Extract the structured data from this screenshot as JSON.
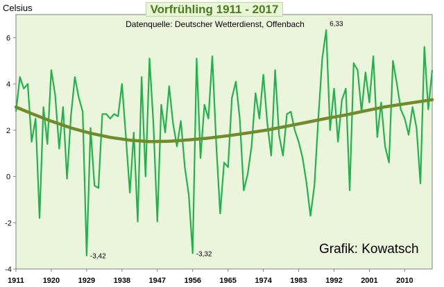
{
  "chart_data": {
    "type": "line",
    "title": "Vorfrühling 1911 - 2017",
    "subtitle": "Datenquelle: Deutscher Wetterdienst, Offenbach",
    "ylabel": "Celsius",
    "xlabel": "",
    "credit": "Grafik: Kowatsch",
    "xlim": [
      1911,
      2017
    ],
    "ylim": [
      -4,
      7
    ],
    "x_ticks": [
      "1911",
      "1920",
      "1929",
      "1938",
      "1947",
      "1956",
      "1965",
      "1974",
      "1983",
      "1992",
      "2001",
      "2010"
    ],
    "y_ticks": [
      "-4",
      "-2",
      "0",
      "2",
      "4",
      "6"
    ],
    "grid": false,
    "background_color": "#ebf5dc",
    "series": [
      {
        "name": "",
        "color": "#22b14c",
        "x": [
          1911,
          1912,
          1913,
          1914,
          1915,
          1916,
          1917,
          1918,
          1919,
          1920,
          1921,
          1922,
          1923,
          1924,
          1925,
          1926,
          1927,
          1928,
          1929,
          1930,
          1931,
          1932,
          1933,
          1934,
          1935,
          1936,
          1937,
          1938,
          1939,
          1940,
          1941,
          1942,
          1943,
          1944,
          1945,
          1946,
          1947,
          1948,
          1949,
          1950,
          1951,
          1952,
          1953,
          1954,
          1955,
          1956,
          1957,
          1958,
          1959,
          1960,
          1961,
          1962,
          1963,
          1964,
          1965,
          1966,
          1967,
          1968,
          1969,
          1970,
          1971,
          1972,
          1973,
          1974,
          1975,
          1976,
          1977,
          1978,
          1979,
          1980,
          1981,
          1982,
          1983,
          1984,
          1985,
          1986,
          1987,
          1988,
          1989,
          1990,
          1991,
          1992,
          1993,
          1994,
          1995,
          1996,
          1997,
          1998,
          1999,
          2000,
          2001,
          2002,
          2003,
          2004,
          2005,
          2006,
          2007,
          2008,
          2009,
          2010,
          2011,
          2012,
          2013,
          2014,
          2015,
          2016,
          2017
        ],
        "values": [
          2.8,
          4.3,
          3.8,
          4.0,
          1.5,
          2.5,
          -1.8,
          3.0,
          1.4,
          4.6,
          3.5,
          1.2,
          3.0,
          -0.1,
          2.6,
          4.3,
          3.4,
          2.8,
          -3.42,
          2.1,
          -0.4,
          -0.5,
          2.7,
          2.7,
          2.5,
          2.7,
          2.6,
          4.0,
          1.7,
          -0.7,
          1.9,
          -1.95,
          4.3,
          0.0,
          5.1,
          2.3,
          -1.95,
          3.1,
          1.9,
          3.9,
          2.3,
          1.3,
          2.4,
          0.4,
          -0.8,
          -3.32,
          5.1,
          0.8,
          3.1,
          2.5,
          5.2,
          1.4,
          -1.6,
          0.6,
          0.4,
          3.4,
          4.1,
          2.5,
          -0.6,
          0.1,
          1.3,
          3.6,
          2.5,
          4.4,
          2.3,
          0.9,
          4.6,
          1.8,
          0.9,
          2.7,
          2.8,
          2.0,
          1.5,
          0.8,
          -0.3,
          -1.7,
          -0.4,
          2.5,
          5.1,
          6.33,
          2.0,
          3.8,
          1.5,
          3.3,
          3.8,
          -0.6,
          4.9,
          4.6,
          2.8,
          4.5,
          3.2,
          5.2,
          1.7,
          3.2,
          1.3,
          0.6,
          5.0,
          4.0,
          2.9,
          2.5,
          1.8,
          3.0,
          2.1,
          -0.3,
          5.6,
          2.9,
          4.6
        ]
      },
      {
        "name": "",
        "color": "#6f8b2c",
        "type": "trend",
        "x": [
          1911,
          1915,
          1920,
          1925,
          1930,
          1935,
          1940,
          1945,
          1950,
          1955,
          1960,
          1965,
          1970,
          1975,
          1980,
          1985,
          1990,
          1995,
          2000,
          2005,
          2010,
          2017
        ],
        "values": [
          3.0,
          2.72,
          2.39,
          2.1,
          1.87,
          1.69,
          1.57,
          1.51,
          1.52,
          1.58,
          1.66,
          1.76,
          1.88,
          2.01,
          2.17,
          2.34,
          2.51,
          2.66,
          2.84,
          3.01,
          3.14,
          3.32
        ]
      }
    ],
    "annotations": [
      {
        "x": 1929,
        "y": -3.42,
        "text": "-3,42"
      },
      {
        "x": 1956,
        "y": -3.32,
        "text": "-3,32"
      },
      {
        "x": 1990,
        "y": 6.33,
        "text": "6,33"
      }
    ]
  }
}
